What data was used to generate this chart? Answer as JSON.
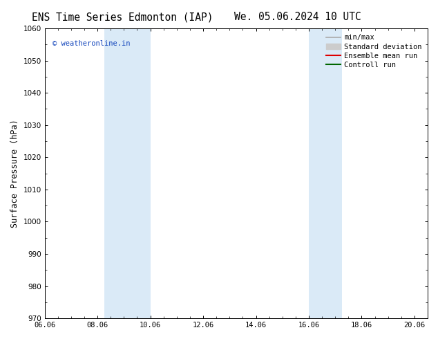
{
  "title_left": "ENS Time Series Edmonton (IAP)",
  "title_right": "We. 05.06.2024 10 UTC",
  "ylabel": "Surface Pressure (hPa)",
  "ylim": [
    970,
    1060
  ],
  "yticks": [
    970,
    980,
    990,
    1000,
    1010,
    1020,
    1030,
    1040,
    1050,
    1060
  ],
  "xlim_start": 0.0,
  "xlim_end": 14.5,
  "xtick_labels": [
    "06.06",
    "08.06",
    "10.06",
    "12.06",
    "14.06",
    "16.06",
    "18.06",
    "20.06"
  ],
  "xtick_positions": [
    0,
    2,
    4,
    6,
    8,
    10,
    12,
    14
  ],
  "shaded_bands": [
    {
      "x_start": 2.25,
      "x_end": 4.0
    },
    {
      "x_start": 10.0,
      "x_end": 11.25
    }
  ],
  "shaded_color": "#daeaf7",
  "legend_entries": [
    {
      "label": "min/max",
      "color": "#aaaaaa",
      "lw": 1.2,
      "style": "solid",
      "type": "line"
    },
    {
      "label": "Standard deviation",
      "color": "#cccccc",
      "lw": 6,
      "style": "solid",
      "type": "rect"
    },
    {
      "label": "Ensemble mean run",
      "color": "#dd0000",
      "lw": 1.5,
      "style": "solid",
      "type": "line"
    },
    {
      "label": "Controll run",
      "color": "#006600",
      "lw": 1.5,
      "style": "solid",
      "type": "line"
    }
  ],
  "watermark": "© weatheronline.in",
  "watermark_color": "#1144bb",
  "background_color": "#ffffff",
  "title_fontsize": 10.5,
  "ylabel_fontsize": 8.5,
  "tick_fontsize": 7.5,
  "legend_fontsize": 7.5
}
